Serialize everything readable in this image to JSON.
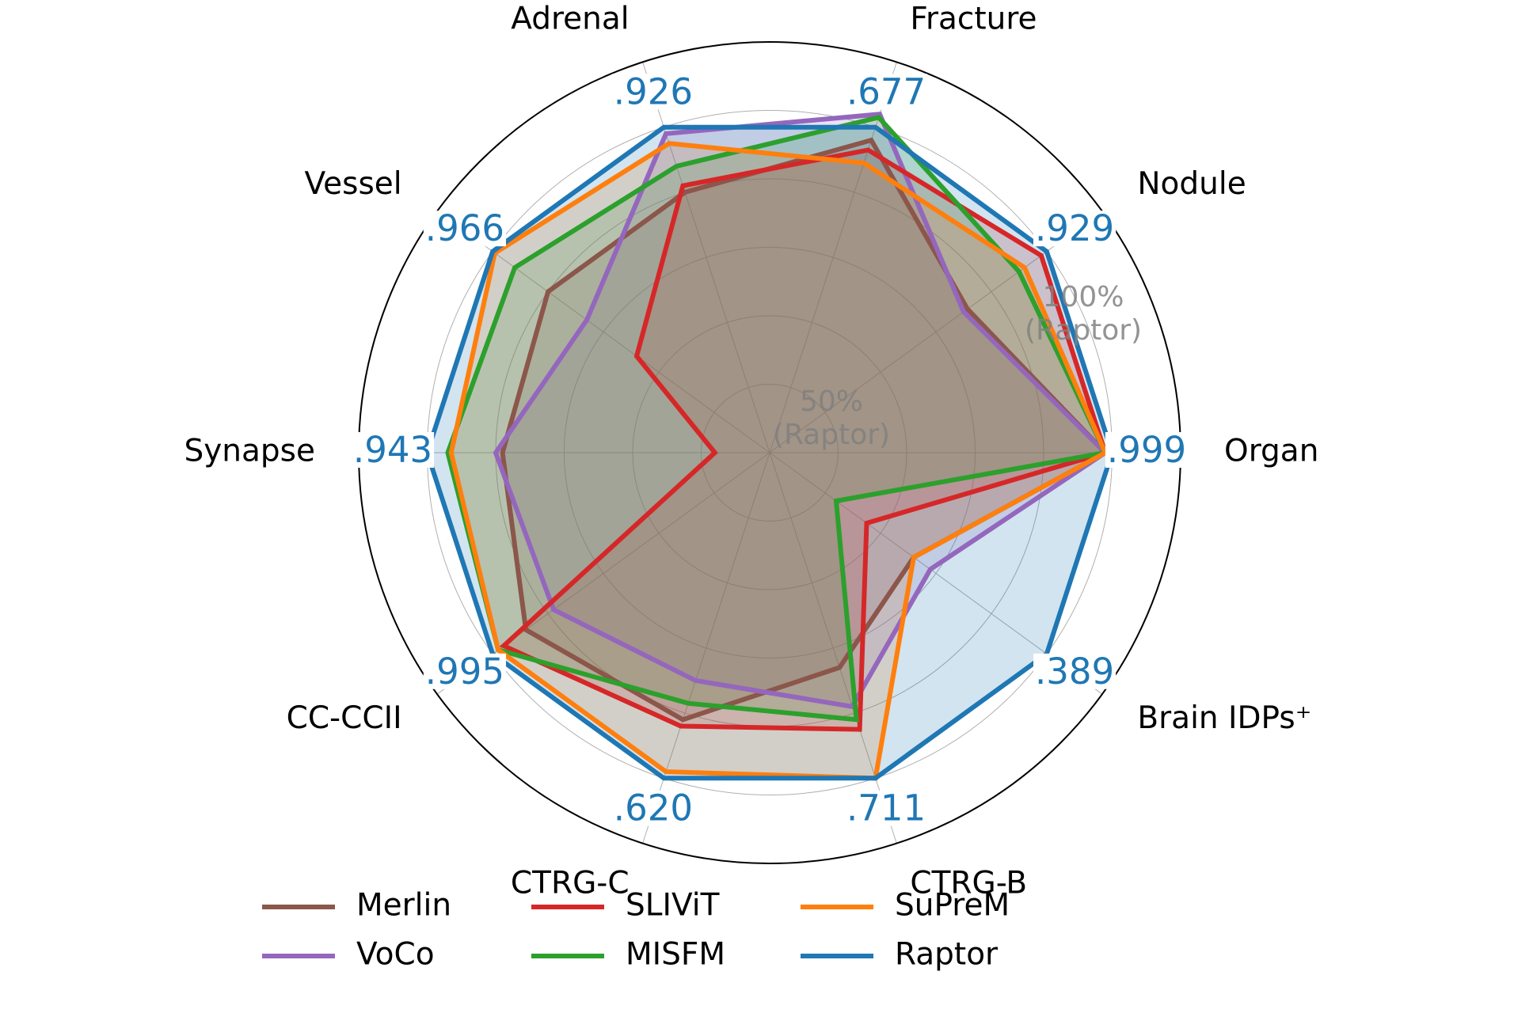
{
  "chart_data": {
    "type": "radar",
    "categories": [
      "Organ",
      "Nodule",
      "Fracture",
      "Adrenal",
      "Vessel",
      "Synapse",
      "CC-CCII",
      "CTRG-C",
      "CTRG-B",
      "Brain IDPs⁺"
    ],
    "axis_scores": [
      0.999,
      0.929,
      0.677,
      0.926,
      0.966,
      0.943,
      0.995,
      0.62,
      0.711,
      0.389
    ],
    "axis_score_labels": [
      ".999",
      ".929",
      ".677",
      ".926",
      ".966",
      ".943",
      ".995",
      ".620",
      ".711",
      ".389"
    ],
    "axis_score_color": "#1f77b4",
    "rlim": [
      50,
      110
    ],
    "rticks": [
      {
        "value": 50,
        "label": [
          "50%",
          "(Raptor)"
        ]
      },
      {
        "value": 60,
        "label": null
      },
      {
        "value": 70,
        "label": null
      },
      {
        "value": 80,
        "label": null
      },
      {
        "value": 90,
        "label": null
      },
      {
        "value": 100,
        "label": [
          "100%",
          "(Raptor)"
        ]
      }
    ],
    "grid": true,
    "legend": "bottom",
    "series": [
      {
        "name": "Merlin",
        "color": "#8c564b",
        "values": [
          99,
          85.7,
          98,
          90,
          90,
          89,
          94,
          91,
          83,
          76
        ]
      },
      {
        "name": "VoCo",
        "color": "#9467bd",
        "values": [
          99,
          85,
          102,
          99,
          83,
          90,
          89,
          85,
          89,
          79
        ]
      },
      {
        "name": "SLIViT",
        "color": "#d62728",
        "values": [
          99,
          99,
          96.5,
          91,
          74,
          58,
          98,
          92,
          92.5,
          67.5
        ]
      },
      {
        "name": "MISFM",
        "color": "#2ca02c",
        "values": [
          99,
          95,
          101.5,
          94,
          96,
          97,
          99,
          88.5,
          91,
          62
        ]
      },
      {
        "name": "SuPreM",
        "color": "#ff7f0e",
        "values": [
          99,
          96,
          94.5,
          97.5,
          99.6,
          96.5,
          99,
          99,
          100,
          76
        ]
      },
      {
        "name": "Raptor",
        "color": "#1f77b4",
        "values": [
          100,
          100,
          100,
          100,
          100,
          100,
          100,
          100,
          100,
          100
        ]
      }
    ]
  }
}
